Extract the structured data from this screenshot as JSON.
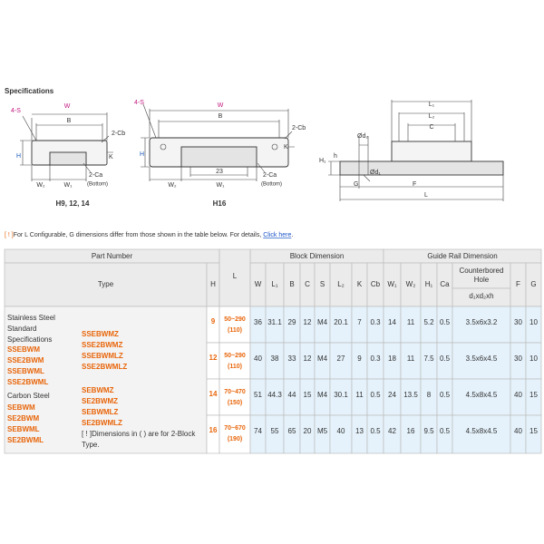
{
  "heading": "Specifications",
  "drawings": [
    {
      "labels": [
        "4-S",
        "W",
        "B",
        "2-Cb",
        "H",
        "K",
        "W₂",
        "W₁",
        "2-Ca",
        "(Bottom)"
      ],
      "caption": "H9, 12, 14"
    },
    {
      "labels": [
        "4-S",
        "W",
        "B",
        "2-Cb",
        "H",
        "K",
        "23",
        "W₂",
        "W₁",
        "2-Ca",
        "(Bottom)"
      ],
      "caption": "H16"
    },
    {
      "labels": [
        "L₁",
        "L₂",
        "C",
        "Ød₂",
        "H₁",
        "h",
        "Ød₁",
        "G",
        "F",
        "L"
      ]
    }
  ],
  "note": {
    "mark": "[ ! ]",
    "text": "For L Configurable, G dimensions differ from those shown in the table below. For details, ",
    "link": "Click here",
    "end": "."
  },
  "table": {
    "group_headers": [
      "Part Number",
      "Block Dimension",
      "Guide Rail Dimension"
    ],
    "columns": [
      "Type",
      "H",
      "L",
      "W",
      "L₁",
      "B",
      "C",
      "S",
      "L₂",
      "K",
      "Cb",
      "W₁",
      "W₂",
      "H₁",
      "Ca",
      "Counterbored Hole",
      "F",
      "G"
    ],
    "hole_sub": "d₁xd₂xh",
    "type_cell": {
      "groups": [
        {
          "material": [
            "Stainless Steel",
            "Standard",
            "Specifications"
          ],
          "types": [
            "SSEBWM",
            "SSE2BWM",
            "SSEBWML",
            "SSE2BWML"
          ],
          "types_z": [
            "SSEBWMZ",
            "SSE2BWMZ",
            "SSEBWMLZ",
            "SSE2BWMLZ"
          ]
        },
        {
          "material": [
            "Carbon Steel"
          ],
          "types": [
            "SEBWM",
            "SE2BWM",
            "SEBWML",
            "SE2BWML"
          ],
          "types_z": [
            "SEBWMZ",
            "SE2BWMZ",
            "SEBWMLZ",
            "SE2BWMLZ"
          ]
        }
      ],
      "note": [
        "[ ! ]Dimensions in ( ) are for 2-Block",
        "Type."
      ]
    },
    "rows": [
      {
        "H": "9",
        "L": [
          "50~290",
          "(110)"
        ],
        "dims": [
          "36",
          "31.1",
          "29",
          "12",
          "M4",
          "20.1",
          "7",
          "0.3",
          "14",
          "11",
          "5.2",
          "0.5",
          "3.5x6x3.2",
          "30",
          "10"
        ]
      },
      {
        "H": "12",
        "L": [
          "50~290",
          "(110)"
        ],
        "dims": [
          "40",
          "38",
          "33",
          "12",
          "M4",
          "27",
          "9",
          "0.3",
          "18",
          "11",
          "7.5",
          "0.5",
          "3.5x6x4.5",
          "30",
          "10"
        ]
      },
      {
        "H": "14",
        "L": [
          "70~470",
          "(150)"
        ],
        "dims": [
          "51",
          "44.3",
          "44",
          "15",
          "M4",
          "30.1",
          "11",
          "0.5",
          "24",
          "13.5",
          "8",
          "0.5",
          "4.5x8x4.5",
          "40",
          "15"
        ]
      },
      {
        "H": "16",
        "L": [
          "70~670",
          "(190)"
        ],
        "dims": [
          "74",
          "55",
          "65",
          "20",
          "M5",
          "40",
          "13",
          "0.5",
          "42",
          "16",
          "9.5",
          "0.5",
          "4.5x8x4.5",
          "40",
          "15"
        ]
      }
    ]
  }
}
